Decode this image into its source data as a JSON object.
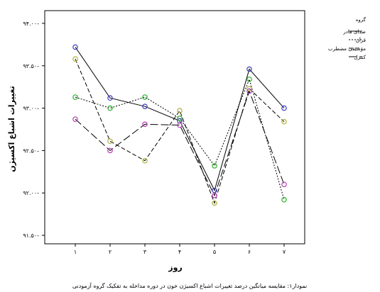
{
  "chart_data": {
    "type": "line",
    "title": "",
    "xlabel": "روز",
    "ylabel": "تغییرات اشباع اکسیژن",
    "caption": "نمودار۱: مقایسه میانگین درصد تغییرات اشباع اکسیژن خون در دوره مداخله به تفکیک گروه آزمودنی",
    "categories": [
      "۱",
      "۲",
      "۳",
      "۴",
      "۵",
      "۶",
      "۷"
    ],
    "x": [
      1,
      2,
      3,
      4,
      5,
      6,
      7
    ],
    "ylim": [
      91.4,
      94.15
    ],
    "yticks": [
      91.5,
      92.0,
      92.5,
      93.0,
      93.5,
      94.0
    ],
    "yticklabels": [
      "۹۱.۵۰-",
      "۹۲.۰۰-",
      "۹۲.۵۰-",
      "۹۳.۰۰-",
      "۹۳.۵۰-",
      "۹۴.۰۰-"
    ],
    "grid": false,
    "legend": {
      "title": "گروه",
      "position": "right"
    },
    "series": [
      {
        "name": "صدای مادر",
        "dash": "solid",
        "marker_color": "#4040c0",
        "values": [
          93.72,
          93.12,
          93.02,
          92.85,
          92.03,
          93.46,
          93.0
        ]
      },
      {
        "name": "قرآن",
        "dash": "dotted",
        "marker_color": "#30b030",
        "values": [
          93.13,
          93.0,
          93.13,
          92.88,
          92.32,
          93.34,
          91.92
        ]
      },
      {
        "name": "موسیقی مضطرب",
        "dash": "dashed",
        "marker_color": "#b0b040",
        "values": [
          93.58,
          92.61,
          92.38,
          92.97,
          91.88,
          93.23,
          92.84
        ]
      },
      {
        "name": "کنترل",
        "dash": "longdash",
        "marker_color": "#b040b0",
        "values": [
          92.87,
          92.5,
          92.81,
          92.8,
          91.97,
          93.2,
          92.1
        ]
      }
    ]
  }
}
